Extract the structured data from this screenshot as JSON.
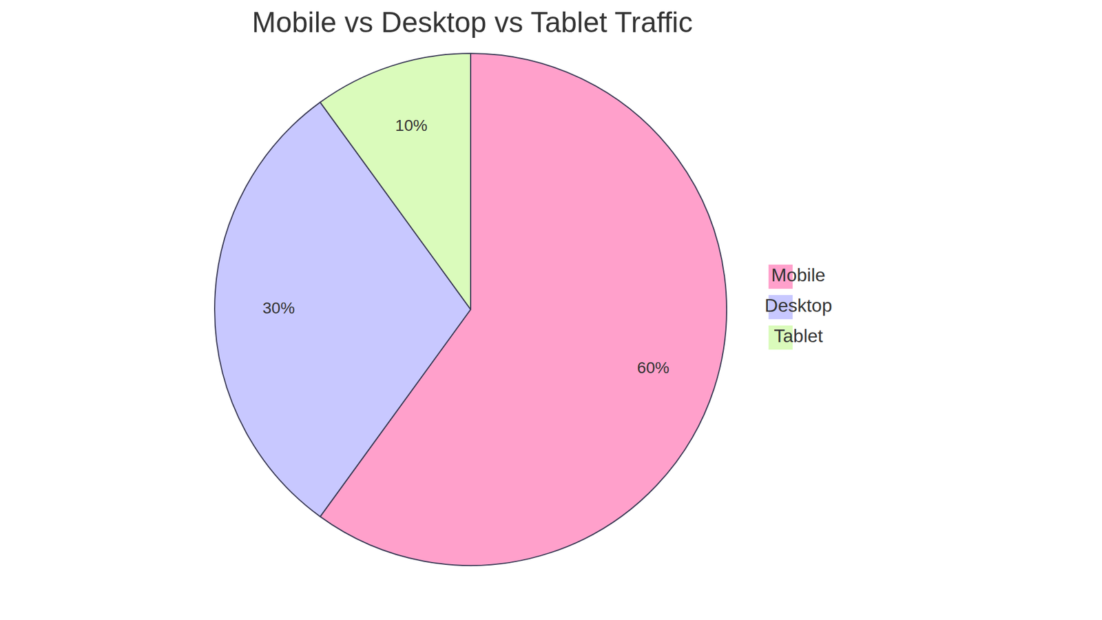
{
  "chart_data": {
    "type": "pie",
    "title": "Mobile vs Desktop vs Tablet Traffic",
    "categories": [
      "Mobile",
      "Desktop",
      "Tablet"
    ],
    "values": [
      60,
      30,
      10
    ],
    "value_labels": [
      "60%",
      "30%",
      "10%"
    ],
    "colors": [
      "#ffa0cb",
      "#c8c8ff",
      "#dafbbb"
    ],
    "data_labels": true,
    "legend": "right"
  }
}
